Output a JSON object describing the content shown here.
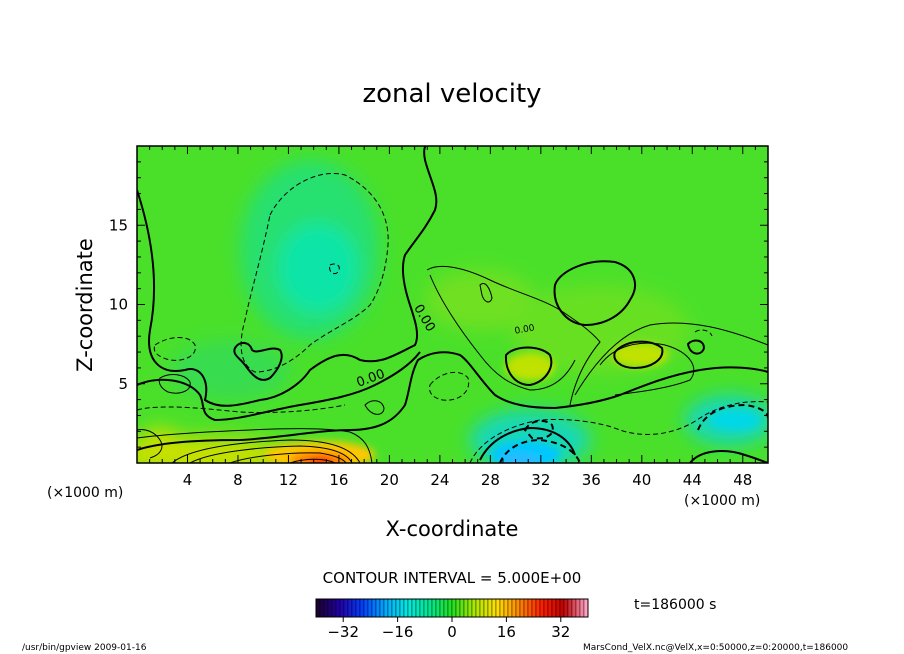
{
  "chart_data": {
    "type": "heatmap",
    "title": "zonal velocity",
    "xlabel": "X-coordinate",
    "ylabel": "Z-coordinate",
    "x_unit_label": "(×1000 m)",
    "z_unit_label": "(×1000 m)",
    "xlim": [
      0,
      50
    ],
    "zlim": [
      0,
      20
    ],
    "x_ticks": [
      4,
      8,
      12,
      16,
      20,
      24,
      28,
      32,
      36,
      40,
      44,
      48
    ],
    "z_ticks": [
      5,
      10,
      15
    ],
    "contour_interval_text": "CONTOUR INTERVAL = 5.000E+00",
    "contour_labels": [
      "0.00",
      "0.00",
      "0.00"
    ],
    "colorbar": {
      "range": [
        -40,
        40
      ],
      "ticks": [
        -32,
        -16,
        0,
        16,
        32
      ],
      "colors": [
        "#1a0033",
        "#2200aa",
        "#0040ff",
        "#00a8ff",
        "#00e8e0",
        "#00e890",
        "#20e020",
        "#a8e800",
        "#ffe000",
        "#ff8800",
        "#ff2000",
        "#c00000",
        "#ffa0c0"
      ]
    },
    "time_label": "t=186000 s",
    "features": [
      {
        "x": 15,
        "z": 0.6,
        "value": 32,
        "note": "strong positive jet near surface"
      },
      {
        "x": 30,
        "z": 0.5,
        "value": -14,
        "note": "negative core near surface"
      },
      {
        "x": 46,
        "z": 2.5,
        "value": -8,
        "note": "negative region lower right"
      },
      {
        "x": 15,
        "z": 12.5,
        "value": -5,
        "note": "weak negative upper region"
      },
      {
        "x": 31,
        "z": 6.5,
        "value": 8,
        "note": "positive blob"
      },
      {
        "x": 39,
        "z": 7,
        "value": 8,
        "note": "positive blob"
      },
      {
        "x": 35,
        "z": 10.5,
        "value": 5,
        "note": "positive blob upper"
      }
    ]
  },
  "footer": {
    "left": "/usr/bin/gpview   2009-01-16",
    "right": "MarsCond_VelX.nc@VelX,x=0:50000,z=0:20000,t=186000"
  }
}
